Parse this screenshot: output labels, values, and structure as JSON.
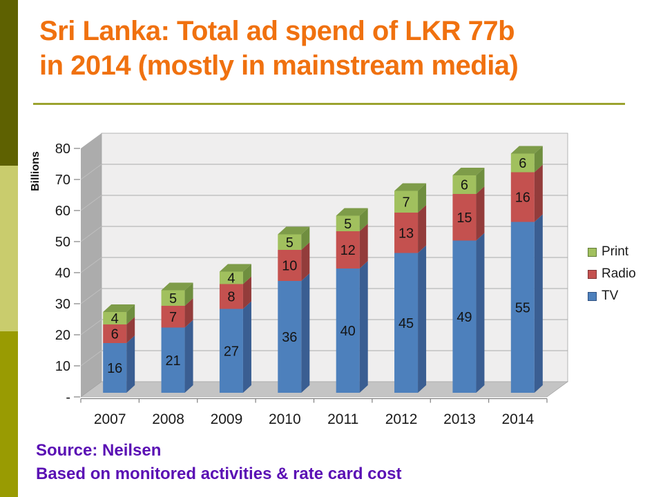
{
  "slide": {
    "title_line1": "Sri Lanka: Total ad spend of LKR 77b",
    "title_line2": "in 2014 (mostly in mainstream media)",
    "source_line1": "Source: Neilsen",
    "source_line2": "Based on monitored activities & rate card cost"
  },
  "colors": {
    "title_orange": "#f0710f",
    "source_purple": "#5a10b4",
    "rule_olive": "#9ba32f",
    "sidebar_top": "#5e6101",
    "sidebar_middle": "#c9cc6d",
    "sidebar_bottom": "#999b02"
  },
  "chart_data": {
    "type": "bar",
    "subtype": "stacked-3d-column",
    "title": "",
    "xlabel": "",
    "ylabel": "Billions",
    "ylim": [
      0,
      80
    ],
    "ytick_step": 10,
    "zero_tick_label": "-",
    "grid": true,
    "legend_position": "right",
    "categories": [
      "2007",
      "2008",
      "2009",
      "2010",
      "2011",
      "2012",
      "2013",
      "2014"
    ],
    "series": [
      {
        "name": "TV",
        "color": "#4d80bc",
        "side_color": "#3a5e92",
        "top_color": "#6f94c9",
        "values": [
          16,
          21,
          27,
          36,
          40,
          45,
          49,
          55
        ]
      },
      {
        "name": "Radio",
        "color": "#c4514f",
        "side_color": "#933c3b",
        "top_color": "#cf6f6d",
        "values": [
          6,
          7,
          8,
          10,
          12,
          13,
          15,
          16
        ]
      },
      {
        "name": "Print",
        "color": "#a1c05e",
        "side_color": "#6f8e3f",
        "top_color": "#7e9c49",
        "values": [
          4,
          5,
          4,
          5,
          5,
          7,
          6,
          6
        ]
      }
    ],
    "totals": [
      26,
      33,
      39,
      51,
      57,
      65,
      70,
      77
    ],
    "legend_order": [
      "Print",
      "Radio",
      "TV"
    ],
    "legend_swatch_borders": {
      "Print": "#5f7a36",
      "Radio": "#7f3535",
      "TV": "#2f5181"
    }
  }
}
